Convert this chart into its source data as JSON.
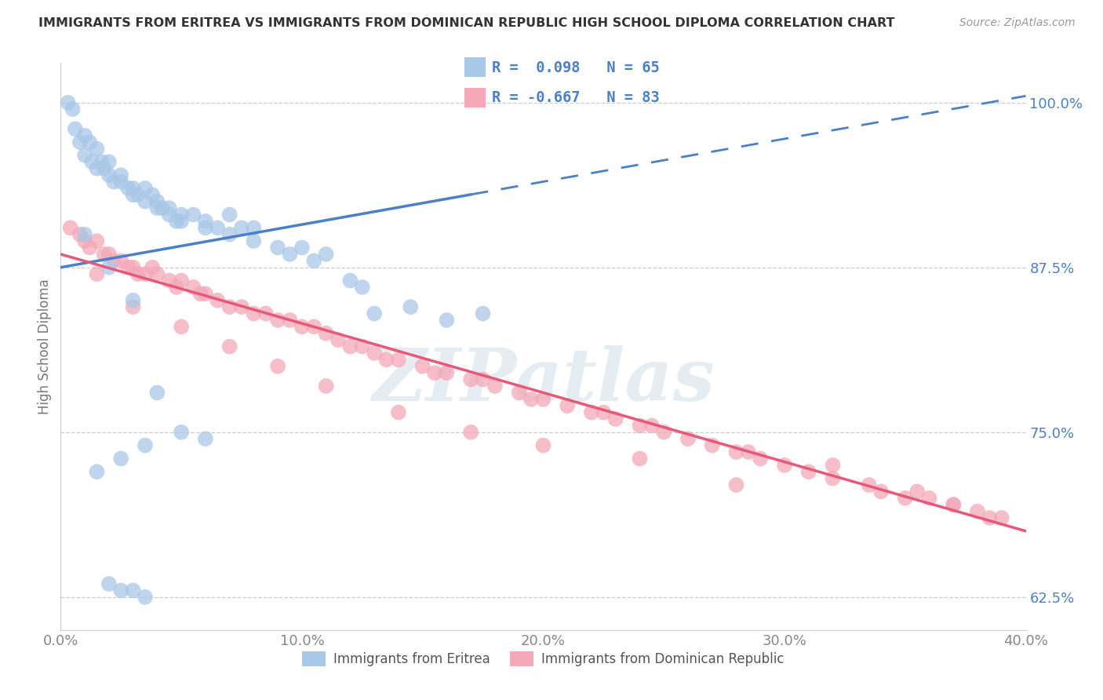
{
  "title": "IMMIGRANTS FROM ERITREA VS IMMIGRANTS FROM DOMINICAN REPUBLIC HIGH SCHOOL DIPLOMA CORRELATION CHART",
  "source": "Source: ZipAtlas.com",
  "ylabel": "High School Diploma",
  "eritrea_R": 0.098,
  "eritrea_N": 65,
  "dominican_R": -0.667,
  "dominican_N": 83,
  "eritrea_color": "#a8c8e8",
  "dominican_color": "#f4a8b8",
  "eritrea_line_color": "#4a80c8",
  "dominican_line_color": "#e85878",
  "legend_text_color": "#4a80c8",
  "ytick_color": "#4a80c8",
  "watermark_color": "#ccdde8",
  "xlim": [
    0.0,
    40.0
  ],
  "ylim": [
    60.0,
    103.0
  ],
  "yticks": [
    62.5,
    75.0,
    87.5,
    100.0
  ],
  "xticks": [
    0.0,
    10.0,
    20.0,
    30.0,
    40.0
  ],
  "eri_line_x0": 0.0,
  "eri_line_x_solid_end": 17.0,
  "eri_line_x1": 40.0,
  "eri_line_y0": 87.5,
  "eri_line_y1": 100.5,
  "dom_line_x0": 0.0,
  "dom_line_x1": 40.0,
  "dom_line_y0": 88.5,
  "dom_line_y1": 67.5,
  "eritrea_x": [
    0.3,
    0.5,
    0.6,
    0.8,
    1.0,
    1.0,
    1.2,
    1.3,
    1.5,
    1.5,
    1.7,
    1.8,
    2.0,
    2.0,
    2.2,
    2.5,
    2.5,
    2.8,
    3.0,
    3.0,
    3.2,
    3.5,
    3.5,
    3.8,
    4.0,
    4.0,
    4.2,
    4.5,
    4.5,
    4.8,
    5.0,
    5.0,
    5.5,
    6.0,
    6.0,
    6.5,
    7.0,
    7.0,
    7.5,
    8.0,
    8.0,
    9.0,
    9.5,
    10.0,
    10.5,
    11.0,
    12.0,
    12.5,
    13.0,
    14.5,
    16.0,
    17.5,
    1.0,
    2.0,
    3.0,
    4.0,
    5.0,
    6.0,
    1.5,
    2.5,
    3.5,
    2.0,
    2.5,
    3.0,
    3.5
  ],
  "eritrea_y": [
    100.0,
    99.5,
    98.0,
    97.0,
    97.5,
    96.0,
    97.0,
    95.5,
    96.5,
    95.0,
    95.5,
    95.0,
    94.5,
    95.5,
    94.0,
    94.5,
    94.0,
    93.5,
    93.5,
    93.0,
    93.0,
    93.5,
    92.5,
    93.0,
    92.5,
    92.0,
    92.0,
    92.0,
    91.5,
    91.0,
    91.5,
    91.0,
    91.5,
    90.5,
    91.0,
    90.5,
    90.0,
    91.5,
    90.5,
    90.5,
    89.5,
    89.0,
    88.5,
    89.0,
    88.0,
    88.5,
    86.5,
    86.0,
    84.0,
    84.5,
    83.5,
    84.0,
    90.0,
    87.5,
    85.0,
    78.0,
    75.0,
    74.5,
    72.0,
    73.0,
    74.0,
    63.5,
    63.0,
    63.0,
    62.5
  ],
  "dominican_x": [
    0.4,
    0.8,
    1.0,
    1.2,
    1.5,
    1.8,
    2.0,
    2.2,
    2.5,
    2.8,
    3.0,
    3.2,
    3.5,
    3.8,
    4.0,
    4.5,
    4.8,
    5.0,
    5.5,
    5.8,
    6.0,
    6.5,
    7.0,
    7.5,
    8.0,
    8.5,
    9.0,
    9.5,
    10.0,
    10.5,
    11.0,
    11.5,
    12.0,
    12.5,
    13.0,
    13.5,
    14.0,
    15.0,
    15.5,
    16.0,
    17.0,
    17.5,
    18.0,
    19.0,
    19.5,
    20.0,
    21.0,
    22.0,
    22.5,
    23.0,
    24.0,
    24.5,
    25.0,
    26.0,
    27.0,
    28.0,
    28.5,
    29.0,
    30.0,
    31.0,
    32.0,
    33.5,
    34.0,
    35.0,
    35.5,
    36.0,
    37.0,
    38.0,
    38.5,
    39.0,
    1.5,
    3.0,
    5.0,
    7.0,
    9.0,
    11.0,
    14.0,
    17.0,
    20.0,
    24.0,
    28.0,
    32.0,
    37.0
  ],
  "dominican_y": [
    90.5,
    90.0,
    89.5,
    89.0,
    89.5,
    88.5,
    88.5,
    88.0,
    88.0,
    87.5,
    87.5,
    87.0,
    87.0,
    87.5,
    87.0,
    86.5,
    86.0,
    86.5,
    86.0,
    85.5,
    85.5,
    85.0,
    84.5,
    84.5,
    84.0,
    84.0,
    83.5,
    83.5,
    83.0,
    83.0,
    82.5,
    82.0,
    81.5,
    81.5,
    81.0,
    80.5,
    80.5,
    80.0,
    79.5,
    79.5,
    79.0,
    79.0,
    78.5,
    78.0,
    77.5,
    77.5,
    77.0,
    76.5,
    76.5,
    76.0,
    75.5,
    75.5,
    75.0,
    74.5,
    74.0,
    73.5,
    73.5,
    73.0,
    72.5,
    72.0,
    71.5,
    71.0,
    70.5,
    70.0,
    70.5,
    70.0,
    69.5,
    69.0,
    68.5,
    68.5,
    87.0,
    84.5,
    83.0,
    81.5,
    80.0,
    78.5,
    76.5,
    75.0,
    74.0,
    73.0,
    71.0,
    72.5,
    69.5
  ]
}
